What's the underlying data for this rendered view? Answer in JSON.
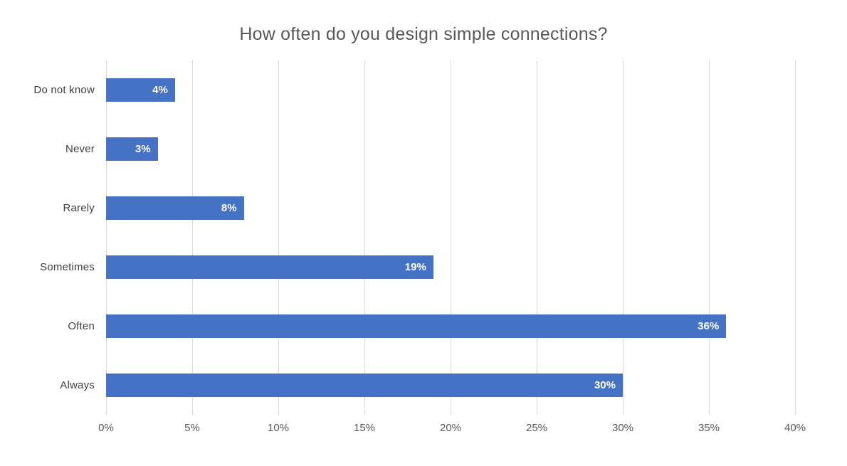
{
  "chart_data": {
    "type": "bar",
    "orientation": "horizontal",
    "title": "How often do you design simple connections?",
    "categories": [
      "Do not know",
      "Never",
      "Rarely",
      "Sometimes",
      "Often",
      "Always"
    ],
    "values": [
      4,
      3,
      8,
      19,
      36,
      30
    ],
    "value_labels": [
      "4%",
      "3%",
      "8%",
      "19%",
      "36%",
      "30%"
    ],
    "x_tick_labels": [
      "0%",
      "5%",
      "10%",
      "15%",
      "20%",
      "25%",
      "30%",
      "35%",
      "40%"
    ],
    "x_tick_values": [
      0,
      5,
      10,
      15,
      20,
      25,
      30,
      35,
      40
    ],
    "xlim": [
      0,
      40
    ],
    "xlabel": "",
    "ylabel": "",
    "grid": true,
    "legend": "none",
    "colors": {
      "bar": "#4472C4",
      "gridline": "#D9D9D9",
      "title_text": "#595959",
      "axis_text": "#595959",
      "category_text": "#404040",
      "data_label_text": "#FFFFFF",
      "background": "#FFFFFF"
    }
  }
}
